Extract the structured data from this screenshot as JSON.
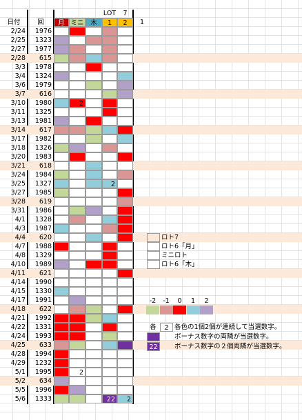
{
  "header": {
    "date": "日付",
    "round": "回",
    "cols": [
      "月",
      "ミニ",
      "木",
      "1",
      "2"
    ],
    "top": [
      "LOT",
      "7"
    ],
    "extra": "1"
  },
  "palette": {
    "g": "#c4d79b",
    "p": "#da9694",
    "r": "#ff0000",
    "b": "#92cddc",
    "v": "#b1a0c7",
    "x": "#7030a0",
    "row7": "#fde9d9",
    "h0": "#c00000",
    "h1": "#c4d79b",
    "h2": "#4bacc6",
    "h3": "#ffc000",
    "h4": "#ffc000"
  },
  "rows": [
    {
      "date": "2/24",
      "round": "1976",
      "cells": [
        null,
        "r",
        null,
        "p",
        null
      ]
    },
    {
      "date": "2/25",
      "round": "1323",
      "cells": [
        "v",
        null,
        "p",
        "p",
        null
      ]
    },
    {
      "date": "2/27",
      "round": "1977",
      "cells": [
        "v",
        "p",
        null,
        "p",
        null
      ]
    },
    {
      "date": "2/28",
      "round": "615",
      "lotto7": true,
      "cells": [
        "g",
        "p",
        "b",
        "p",
        null
      ]
    },
    {
      "date": "3/3",
      "round": "1978",
      "cells": [
        null,
        null,
        "r",
        null,
        null
      ]
    },
    {
      "date": "3/4",
      "round": "1324",
      "cells": [
        "v",
        null,
        null,
        null,
        "b"
      ]
    },
    {
      "date": "3/6",
      "round": "1979",
      "cells": [
        null,
        null,
        "g",
        null,
        "v"
      ]
    },
    {
      "date": "3/7",
      "round": "616",
      "lotto7": true,
      "cells": [
        null,
        null,
        null,
        "g",
        "v"
      ]
    },
    {
      "date": "3/10",
      "round": "1980",
      "cells": [
        "b",
        [
          "r",
          "2"
        ],
        null,
        "r",
        null
      ]
    },
    {
      "date": "3/11",
      "round": "1325",
      "cells": [
        null,
        null,
        null,
        "r",
        null
      ]
    },
    {
      "date": "3/13",
      "round": "1981",
      "cells": [
        "v",
        null,
        "r",
        null,
        null
      ]
    },
    {
      "date": "3/14",
      "round": "617",
      "lotto7": true,
      "cells": [
        "p",
        "p",
        "g",
        "b",
        "r"
      ]
    },
    {
      "date": "3/17",
      "round": "1982",
      "cells": [
        null,
        null,
        "g",
        null,
        "b"
      ]
    },
    {
      "date": "3/18",
      "round": "1326",
      "cells": [
        "g",
        "v",
        null,
        "p",
        null
      ]
    },
    {
      "date": "3/20",
      "round": "1983",
      "cells": [
        null,
        "r",
        null,
        null,
        "r"
      ]
    },
    {
      "date": "3/21",
      "round": "618",
      "lotto7": true,
      "cells": [
        null,
        null,
        "b",
        null,
        null
      ]
    },
    {
      "date": "3/24",
      "round": "1984",
      "cells": [
        "g",
        null,
        "b",
        null,
        "p"
      ]
    },
    {
      "date": "3/25",
      "round": "1327",
      "cells": [
        "b",
        null,
        "b",
        [
          "b",
          "2"
        ],
        null
      ]
    },
    {
      "date": "3/27",
      "round": "1985",
      "cells": [
        "g",
        null,
        null,
        null,
        "r"
      ]
    },
    {
      "date": "3/28",
      "round": "619",
      "lotto7": true,
      "cells": [
        null,
        null,
        null,
        null,
        "p"
      ]
    },
    {
      "date": "3/31",
      "round": "1986",
      "cells": [
        null,
        "g",
        "v",
        null,
        "r"
      ]
    },
    {
      "date": "4/1",
      "round": "1328",
      "cells": [
        null,
        "p",
        null,
        "b",
        "r"
      ]
    },
    {
      "date": "4/3",
      "round": "1987",
      "cells": [
        "b",
        null,
        null,
        "p",
        "r"
      ]
    },
    {
      "date": "4/4",
      "round": "620",
      "lotto7": true,
      "cells": [
        null,
        null,
        "b",
        null,
        "r"
      ]
    },
    {
      "date": "4/7",
      "round": "1988",
      "cells": [
        "r",
        null,
        null,
        "r",
        null
      ]
    },
    {
      "date": "4/8",
      "round": "1329",
      "cells": [
        null,
        null,
        null,
        "r",
        null
      ]
    },
    {
      "date": "4/10",
      "round": "1989",
      "cells": [
        "v",
        null,
        "r",
        "r",
        null
      ]
    },
    {
      "date": "4/11",
      "round": "621",
      "lotto7": true,
      "cells": [
        null,
        null,
        null,
        null,
        "r"
      ]
    },
    {
      "date": "4/14",
      "round": "1990",
      "cells": [
        null,
        null,
        null,
        null,
        null
      ]
    },
    {
      "date": "4/15",
      "round": "1330",
      "cells": [
        "b",
        null,
        null,
        null,
        null
      ]
    },
    {
      "date": "4/17",
      "round": "1991",
      "cells": [
        null,
        "v",
        null,
        null,
        null
      ]
    },
    {
      "date": "4/18",
      "round": "622",
      "lotto7": true,
      "cells": [
        null,
        "p",
        "g",
        null,
        "r"
      ]
    },
    {
      "date": "4/21",
      "round": "1992",
      "cells": [
        "r",
        "r",
        "g",
        "b",
        null
      ]
    },
    {
      "date": "4/22",
      "round": "1331",
      "cells": [
        "r",
        "r",
        null,
        "r",
        null
      ]
    },
    {
      "date": "4/24",
      "round": "1993",
      "cells": [
        "r",
        "r",
        null,
        "g",
        null
      ]
    },
    {
      "date": "4/25",
      "round": "633",
      "lotto7": true,
      "cells": [
        "p",
        "g",
        null,
        "b",
        "x"
      ]
    },
    {
      "date": "4/28",
      "round": "1994",
      "cells": [
        "r",
        null,
        null,
        null,
        null
      ]
    },
    {
      "date": "4/29",
      "round": "1232",
      "cells": [
        "r",
        null,
        null,
        null,
        null
      ]
    },
    {
      "date": "5/1",
      "round": "1995",
      "cells": [
        "r",
        [
          null,
          "2"
        ],
        null,
        null,
        null
      ]
    },
    {
      "date": "5/2",
      "round": "634",
      "lotto7": true,
      "cells": [
        "v",
        null,
        null,
        null,
        null
      ]
    },
    {
      "date": "5/5",
      "round": "1996",
      "cells": [
        "r",
        "v",
        null,
        null,
        null
      ]
    },
    {
      "date": "5/6",
      "round": "1333",
      "cells": [
        "g",
        "g",
        null,
        [
          "x",
          "22"
        ],
        [
          "b",
          "2"
        ]
      ]
    }
  ],
  "legend": [
    {
      "color": "row7",
      "label": "ロト7"
    },
    {
      "color": null,
      "label": "ロト6「月」"
    },
    {
      "color": null,
      "label": "ミニロト"
    },
    {
      "color": null,
      "label": "ロト6「木」"
    }
  ],
  "scale": [
    {
      "label": "-2",
      "color": "g"
    },
    {
      "label": "-1",
      "color": "p"
    },
    {
      "label": "0",
      "color": "r"
    },
    {
      "label": "1",
      "color": "b"
    },
    {
      "label": "2",
      "color": "v"
    }
  ],
  "notes": [
    {
      "prefix": "各",
      "box": "2",
      "color": null,
      "text": "各色の1個2個が連続して当選数字。"
    },
    {
      "color": "x",
      "text": "ボーナス数字の両隣が当選数字。"
    },
    {
      "color": "x",
      "box": "22",
      "text": "ボーナス数字の２個両隣が当選数字。"
    }
  ]
}
